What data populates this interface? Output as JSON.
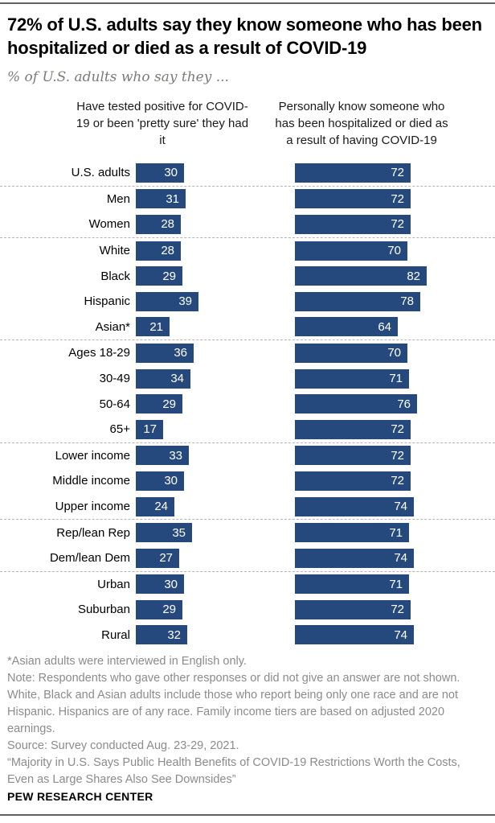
{
  "header": {
    "title": "72% of U.S. adults say they know someone who has been hospitalized or died as a result of COVID-19",
    "subtitle": "% of U.S. adults who say they ..."
  },
  "chart_data": {
    "type": "bar",
    "orientation": "horizontal",
    "unit": "%",
    "xlim": [
      0,
      100
    ],
    "grid": false,
    "bar_color": "#25497c",
    "value_label_color": "#ffffff",
    "separator_style": "dashed",
    "series": [
      {
        "name": "Have tested positive for COVID-19 or been 'pretty sure' they had it"
      },
      {
        "name": "Personally know someone who has been hospitalized or died as a result of having COVID-19"
      }
    ],
    "groups": [
      {
        "rows": [
          {
            "label": "U.S. adults",
            "tested_positive": 30,
            "know_someone": 72
          }
        ]
      },
      {
        "rows": [
          {
            "label": "Men",
            "tested_positive": 31,
            "know_someone": 72
          },
          {
            "label": "Women",
            "tested_positive": 28,
            "know_someone": 72
          }
        ]
      },
      {
        "rows": [
          {
            "label": "White",
            "tested_positive": 28,
            "know_someone": 70
          },
          {
            "label": "Black",
            "tested_positive": 29,
            "know_someone": 82
          },
          {
            "label": "Hispanic",
            "tested_positive": 39,
            "know_someone": 78
          },
          {
            "label": "Asian*",
            "tested_positive": 21,
            "know_someone": 64
          }
        ]
      },
      {
        "rows": [
          {
            "label": "Ages 18-29",
            "tested_positive": 36,
            "know_someone": 70
          },
          {
            "label": "30-49",
            "tested_positive": 34,
            "know_someone": 71
          },
          {
            "label": "50-64",
            "tested_positive": 29,
            "know_someone": 76
          },
          {
            "label": "65+",
            "tested_positive": 17,
            "know_someone": 72
          }
        ]
      },
      {
        "rows": [
          {
            "label": "Lower income",
            "tested_positive": 33,
            "know_someone": 72
          },
          {
            "label": "Middle income",
            "tested_positive": 30,
            "know_someone": 72
          },
          {
            "label": "Upper income",
            "tested_positive": 24,
            "know_someone": 74
          }
        ]
      },
      {
        "rows": [
          {
            "label": "Rep/lean Rep",
            "tested_positive": 35,
            "know_someone": 71
          },
          {
            "label": "Dem/lean Dem",
            "tested_positive": 27,
            "know_someone": 74
          }
        ]
      },
      {
        "rows": [
          {
            "label": "Urban",
            "tested_positive": 30,
            "know_someone": 71
          },
          {
            "label": "Suburban",
            "tested_positive": 29,
            "know_someone": 72
          },
          {
            "label": "Rural",
            "tested_positive": 32,
            "know_someone": 74
          }
        ]
      }
    ]
  },
  "column_headers": {
    "left": "Have tested positive for COVID-19 or been 'pretty sure' they had it",
    "right": "Personally know someone who has been hospitalized or died as a result of having COVID-19"
  },
  "footnotes": {
    "asterisk": "*Asian adults were interviewed in English only.",
    "note": "Note: Respondents who gave other responses or did not give an answer are not shown. White, Black and Asian adults include those who report being only one race and are not Hispanic. Hispanics are of any race. Family income tiers are based on adjusted 2020 earnings.",
    "source": "Source: Survey conducted Aug. 23-29, 2021.",
    "report": "“Majority in U.S. Says Public Health Benefits of COVID-19 Restrictions Worth the Costs, Even as Large Shares Also See Downsides”"
  },
  "footer": {
    "brand": "PEW RESEARCH CENTER"
  }
}
